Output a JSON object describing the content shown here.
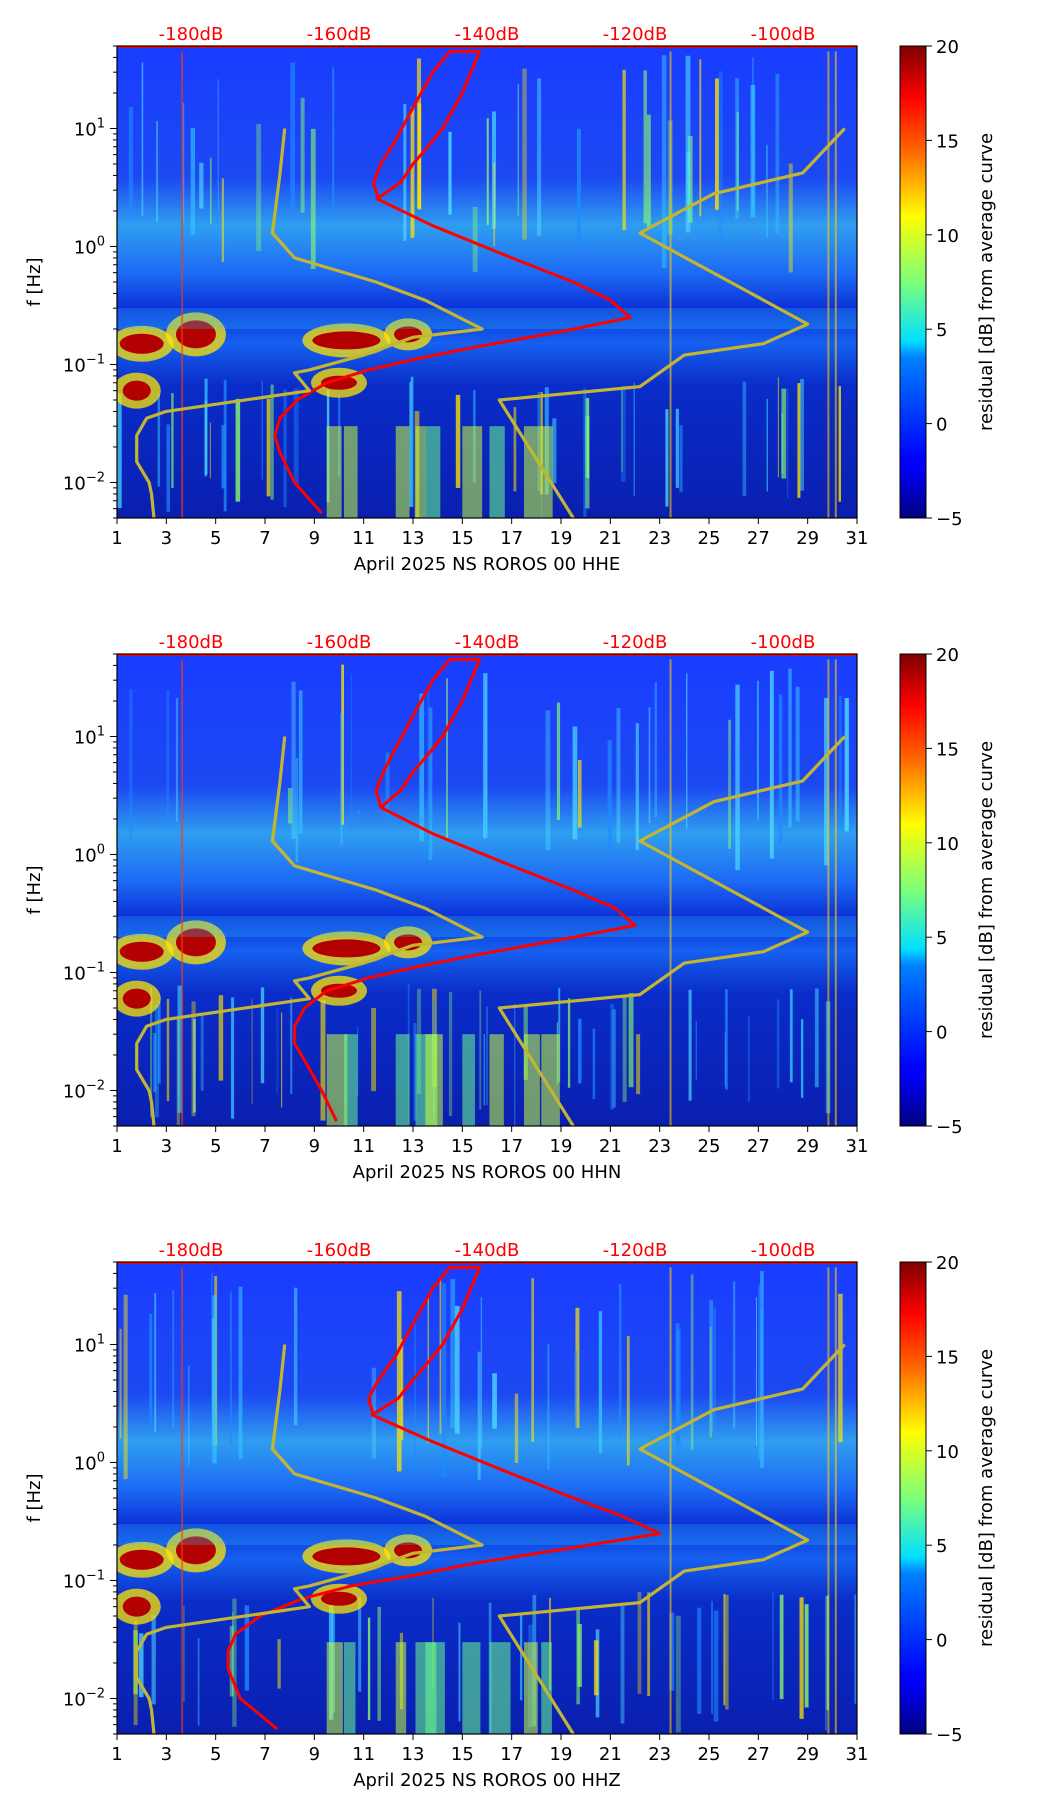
{
  "colors": {
    "red_curve": "#ff0000",
    "olive_curve": "#c3b534",
    "db_label": "#ff0000"
  },
  "colorbar": {
    "label": "residual [dB] from average curve",
    "ticks": [
      20,
      15,
      10,
      5,
      0,
      -5
    ],
    "tick_labels": [
      "20",
      "15",
      "10",
      "5",
      "0",
      "−5"
    ],
    "range": [
      -5,
      20
    ]
  },
  "y_axis": {
    "label": "f [Hz]",
    "ticks": [
      {
        "value": 10,
        "base": "10",
        "exp": "1"
      },
      {
        "value": 1,
        "base": "10",
        "exp": "0"
      },
      {
        "value": 0.1,
        "base": "10",
        "exp": "−1"
      },
      {
        "value": 0.01,
        "base": "10",
        "exp": "−2"
      }
    ],
    "range": [
      0.005,
      50
    ]
  },
  "x_axis": {
    "ticks": [
      1,
      3,
      5,
      7,
      9,
      11,
      13,
      15,
      17,
      19,
      21,
      23,
      25,
      27,
      29,
      31
    ],
    "tick_labels": [
      "1",
      "3",
      "5",
      "7",
      "9",
      "11",
      "13",
      "15",
      "17",
      "19",
      "21",
      "23",
      "25",
      "27",
      "29",
      "31"
    ],
    "range": [
      1,
      31
    ]
  },
  "db_labels": [
    "-180dB",
    "-160dB",
    "-140dB",
    "-120dB",
    "-100dB"
  ],
  "chart_data": [
    {
      "type": "heatmap",
      "title": "",
      "xlabel": "April 2025 NS ROROS 00 HHE",
      "ylabel": "f [Hz]",
      "xlim": [
        1,
        31
      ],
      "ylim": [
        0.005,
        50
      ],
      "yscale": "log",
      "colorbar_label": "residual [dB] from average curve",
      "series": [
        {
          "name": "average PSD (red)",
          "x": [
            11.5,
            12.5,
            13.0,
            13.6,
            14.2,
            15.0,
            15.7,
            14.5,
            13.8,
            13.0,
            12.3,
            11.7,
            11.4,
            11.6,
            13.8,
            17.0,
            19.5,
            21.0,
            21.8,
            19.0,
            15.5,
            13.0,
            11.2,
            9.5,
            8.3,
            7.6,
            7.4,
            7.6,
            8.2,
            9.3
          ],
          "y": [
            2.5,
            3.5,
            5,
            7,
            10,
            20,
            45,
            45,
            30,
            15,
            8,
            5,
            3.5,
            2.5,
            1.5,
            0.8,
            0.5,
            0.35,
            0.25,
            0.19,
            0.14,
            0.11,
            0.09,
            0.07,
            0.05,
            0.035,
            0.025,
            0.018,
            0.01,
            0.0055
          ]
        },
        {
          "name": "NLNM/NHNM model (olive)",
          "x": [
            7.8,
            7.6,
            7.3,
            8.2,
            11.5,
            13.5,
            15.8,
            13.0,
            11.0,
            8.8,
            8.2,
            8.8,
            3.0,
            2.2,
            1.8,
            1.8,
            2.3,
            2.4,
            2.5
          ],
          "y": [
            10,
            4,
            1.3,
            0.8,
            0.5,
            0.35,
            0.2,
            0.17,
            0.12,
            0.09,
            0.085,
            0.06,
            0.04,
            0.035,
            0.025,
            0.015,
            0.01,
            0.008,
            0.005
          ]
        },
        {
          "name": "NHNM model (olive, right)",
          "x": [
            30.5,
            28.8,
            25.2,
            22.2,
            29.0,
            27.2,
            24.0,
            22.2,
            16.5,
            19.5
          ],
          "y": [
            10,
            4.2,
            2.8,
            1.3,
            0.22,
            0.15,
            0.12,
            0.065,
            0.05,
            0.005
          ]
        }
      ]
    },
    {
      "type": "heatmap",
      "title": "",
      "xlabel": "April 2025 NS ROROS 00 HHN",
      "ylabel": "f [Hz]",
      "xlim": [
        1,
        31
      ],
      "ylim": [
        0.005,
        50
      ],
      "yscale": "log",
      "colorbar_label": "residual [dB] from average curve",
      "series": [
        {
          "name": "average PSD (red)",
          "x": [
            11.7,
            12.5,
            13.0,
            13.6,
            14.2,
            15.0,
            15.7,
            14.5,
            13.8,
            13.0,
            12.3,
            11.8,
            11.5,
            11.7,
            13.8,
            17.0,
            19.5,
            21.2,
            22.0,
            19.0,
            15.5,
            13.0,
            11.2,
            9.5,
            8.6,
            8.2,
            8.2,
            8.6,
            9.3,
            9.9
          ],
          "y": [
            2.5,
            3.5,
            5,
            7,
            10,
            20,
            45,
            45,
            30,
            15,
            8,
            5,
            3.5,
            2.5,
            1.5,
            0.8,
            0.5,
            0.35,
            0.25,
            0.19,
            0.14,
            0.11,
            0.09,
            0.07,
            0.05,
            0.035,
            0.025,
            0.018,
            0.01,
            0.0055
          ]
        },
        {
          "name": "NLNM/NHNM model (olive)",
          "x": [
            7.8,
            7.6,
            7.3,
            8.2,
            11.5,
            13.5,
            15.8,
            13.0,
            11.0,
            8.8,
            8.2,
            8.8,
            3.0,
            2.2,
            1.8,
            1.8,
            2.3,
            2.4,
            2.5
          ],
          "y": [
            10,
            4,
            1.3,
            0.8,
            0.5,
            0.35,
            0.2,
            0.17,
            0.12,
            0.09,
            0.085,
            0.06,
            0.04,
            0.035,
            0.025,
            0.015,
            0.01,
            0.008,
            0.005
          ]
        },
        {
          "name": "NHNM model (olive, right)",
          "x": [
            30.5,
            28.8,
            25.2,
            22.2,
            29.0,
            27.2,
            24.0,
            22.2,
            16.5,
            19.5
          ],
          "y": [
            10,
            4.2,
            2.8,
            1.3,
            0.22,
            0.15,
            0.12,
            0.065,
            0.05,
            0.005
          ]
        }
      ]
    },
    {
      "type": "heatmap",
      "title": "",
      "xlabel": "April 2025 NS ROROS 00 HHZ",
      "ylabel": "f [Hz]",
      "xlim": [
        1,
        31
      ],
      "ylim": [
        0.005,
        50
      ],
      "yscale": "log",
      "colorbar_label": "residual [dB] from average curve",
      "series": [
        {
          "name": "average PSD (red)",
          "x": [
            11.3,
            12.4,
            13.0,
            13.6,
            14.2,
            15.0,
            15.7,
            14.5,
            13.8,
            13.0,
            12.3,
            11.6,
            11.2,
            11.4,
            13.8,
            17.0,
            19.5,
            21.5,
            23.0,
            19.5,
            15.5,
            13.0,
            10.5,
            8.5,
            6.8,
            5.8,
            5.5,
            5.5,
            6.0,
            7.5
          ],
          "y": [
            2.5,
            3.5,
            5,
            7,
            10,
            20,
            45,
            45,
            30,
            15,
            8,
            5,
            3.5,
            2.5,
            1.5,
            0.8,
            0.5,
            0.35,
            0.25,
            0.19,
            0.14,
            0.11,
            0.09,
            0.07,
            0.05,
            0.035,
            0.025,
            0.018,
            0.01,
            0.0055
          ]
        },
        {
          "name": "NLNM/NHNM model (olive)",
          "x": [
            7.8,
            7.6,
            7.3,
            8.2,
            11.5,
            13.5,
            15.8,
            13.0,
            11.0,
            8.8,
            8.2,
            8.8,
            3.0,
            2.2,
            1.8,
            1.8,
            2.3,
            2.4,
            2.5
          ],
          "y": [
            10,
            4,
            1.3,
            0.8,
            0.5,
            0.35,
            0.2,
            0.17,
            0.12,
            0.09,
            0.085,
            0.06,
            0.04,
            0.035,
            0.025,
            0.015,
            0.01,
            0.008,
            0.005
          ]
        },
        {
          "name": "NHNM model (olive, right)",
          "x": [
            30.5,
            28.8,
            25.2,
            22.2,
            29.0,
            27.2,
            24.0,
            22.2,
            16.5,
            19.5
          ],
          "y": [
            10,
            4.2,
            2.8,
            1.3,
            0.22,
            0.15,
            0.12,
            0.065,
            0.05,
            0.005
          ]
        }
      ]
    }
  ]
}
